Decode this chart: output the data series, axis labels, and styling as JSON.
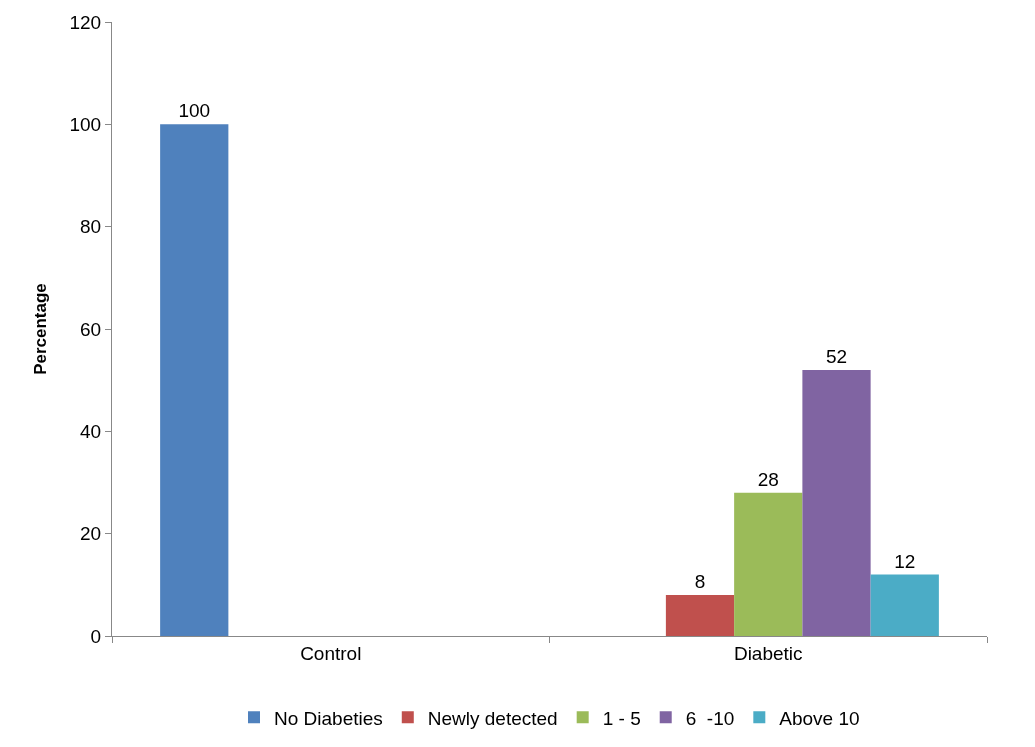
{
  "chart_data": {
    "type": "bar",
    "ylabel": "Percentage",
    "categories": [
      "Control",
      "Diabetic"
    ],
    "series": [
      {
        "name": "No Diabeties",
        "color": "#4f81bd",
        "values": [
          100,
          null
        ]
      },
      {
        "name": "Newly detected",
        "color": "#c0504d",
        "values": [
          null,
          8
        ]
      },
      {
        "name": "1 - 5",
        "color": "#9bbb59",
        "values": [
          null,
          28
        ]
      },
      {
        "name": "6  -10",
        "color": "#8064a2",
        "values": [
          null,
          52
        ]
      },
      {
        "name": "Above 10",
        "color": "#4bacc6",
        "values": [
          null,
          12
        ]
      }
    ],
    "ylim": [
      0,
      120
    ],
    "yticks": [
      0,
      20,
      40,
      60,
      80,
      100,
      120
    ],
    "grid": false,
    "legend": "bottom",
    "data_labels": true
  }
}
